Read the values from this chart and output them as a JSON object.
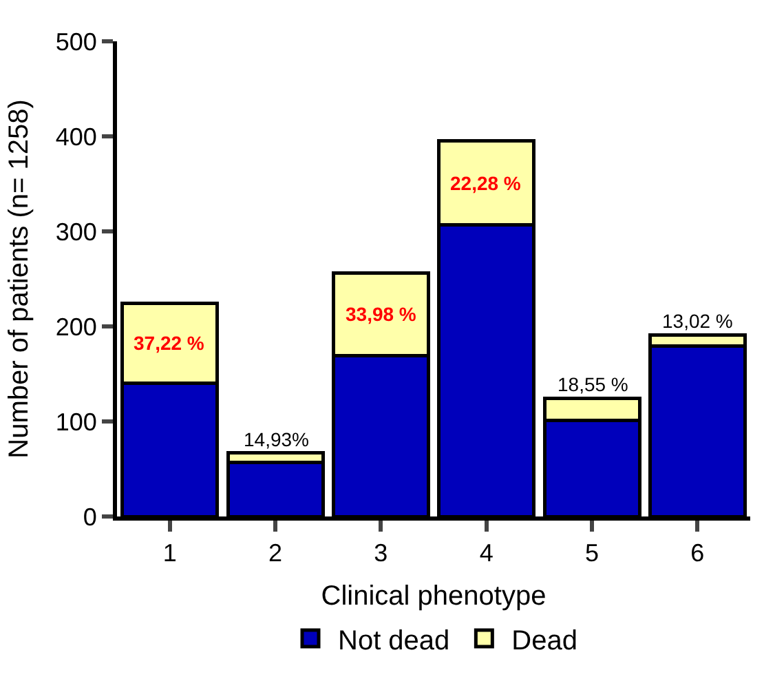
{
  "chart_data": {
    "type": "bar",
    "stacked": true,
    "xlabel": "Clinical phenotype",
    "ylabel": "Number of patients (n= 1258)",
    "categories": [
      "1",
      "2",
      "3",
      "4",
      "5",
      "6"
    ],
    "series": [
      {
        "name": "Not dead",
        "color": "#0000bb",
        "values": [
          140,
          57,
          169,
          307,
          101,
          179
        ]
      },
      {
        "name": "Dead",
        "color": "#ffffaa",
        "values": [
          84,
          10,
          87,
          88,
          23,
          12
        ]
      }
    ],
    "ylim": [
      0,
      500
    ],
    "yticks": [
      0,
      100,
      200,
      300,
      400,
      500
    ],
    "legend": "bottom",
    "annotations": [
      {
        "text": "37,22 %",
        "x": "1",
        "y": 224
      },
      {
        "text": "14,93%",
        "x": "2",
        "y": 67
      },
      {
        "text": "33,98 %",
        "x": "3",
        "y": 256
      },
      {
        "text": "22,28 %",
        "x": "4",
        "y": 395
      },
      {
        "text": "18,55 %",
        "x": "5",
        "y": 124
      },
      {
        "text": "13,02 %",
        "x": "6",
        "y": 191
      }
    ]
  }
}
